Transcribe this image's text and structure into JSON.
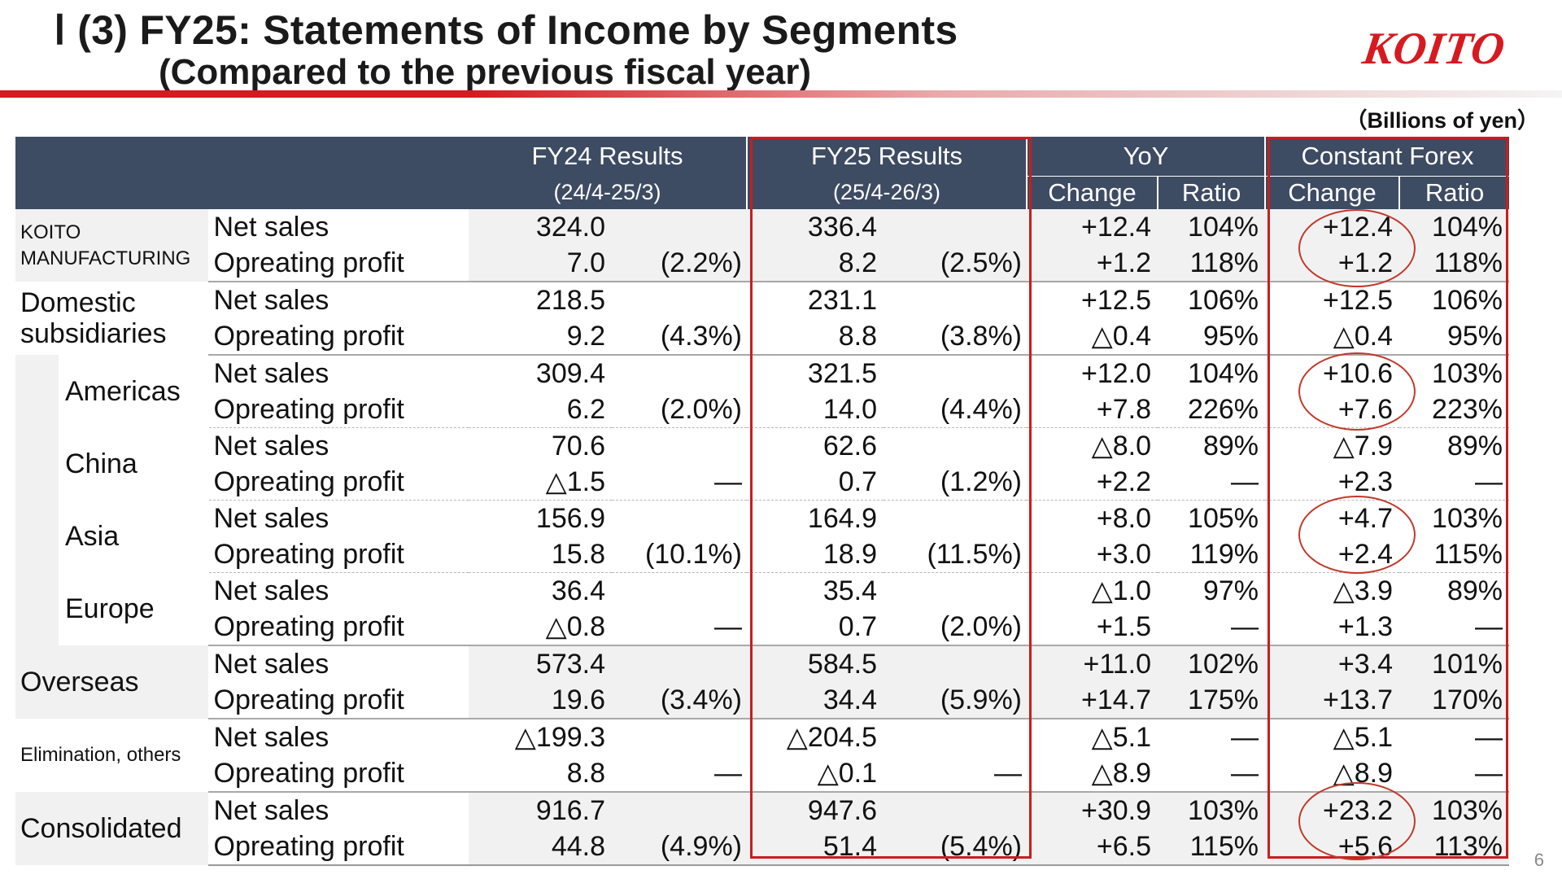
{
  "header": {
    "title_line1": "Ⅰ (3) FY25: Statements of Income by Segments",
    "title_line2": "(Compared to the previous fiscal year)",
    "logo_text": "KOITO",
    "unit": "（Billions of yen）",
    "page_number": "6"
  },
  "colors": {
    "accent_red": "#d71920",
    "header_navy": "#3d4b63",
    "row_gray": "#f1f1f1"
  },
  "columns": {
    "fy24": "FY24 Results",
    "fy24_period": "(24/4-25/3)",
    "fy25": "FY25 Results",
    "fy25_period": "(25/4-26/3)",
    "yoy": "YoY",
    "constant_forex": "Constant Forex",
    "change": "Change",
    "ratio": "Ratio"
  },
  "rows": [
    {
      "segment": "KOITO MANUFACTURING",
      "net_sales": {
        "item": "Net sales",
        "fy24": "324.0",
        "fy24_pct": "",
        "fy25": "336.4",
        "fy25_pct": "",
        "yoy_change": "+12.4",
        "yoy_ratio": "104%",
        "cf_change": "+12.4",
        "cf_ratio": "104%"
      },
      "op_profit": {
        "item": "Opreating profit",
        "fy24": "7.0",
        "fy24_pct": "(2.2%)",
        "fy25": "8.2",
        "fy25_pct": "(2.5%)",
        "yoy_change": "+1.2",
        "yoy_ratio": "118%",
        "cf_change": "+1.2",
        "cf_ratio": "118%"
      }
    },
    {
      "segment": "Domestic subsidiaries",
      "net_sales": {
        "item": "Net sales",
        "fy24": "218.5",
        "fy24_pct": "",
        "fy25": "231.1",
        "fy25_pct": "",
        "yoy_change": "+12.5",
        "yoy_ratio": "106%",
        "cf_change": "+12.5",
        "cf_ratio": "106%"
      },
      "op_profit": {
        "item": "Opreating profit",
        "fy24": "9.2",
        "fy24_pct": "(4.3%)",
        "fy25": "8.8",
        "fy25_pct": "(3.8%)",
        "yoy_change": "△0.4",
        "yoy_ratio": "95%",
        "cf_change": "△0.4",
        "cf_ratio": "95%"
      }
    },
    {
      "segment": "Americas",
      "net_sales": {
        "item": "Net sales",
        "fy24": "309.4",
        "fy24_pct": "",
        "fy25": "321.5",
        "fy25_pct": "",
        "yoy_change": "+12.0",
        "yoy_ratio": "104%",
        "cf_change": "+10.6",
        "cf_ratio": "103%"
      },
      "op_profit": {
        "item": "Opreating profit",
        "fy24": "6.2",
        "fy24_pct": "(2.0%)",
        "fy25": "14.0",
        "fy25_pct": "(4.4%)",
        "yoy_change": "+7.8",
        "yoy_ratio": "226%",
        "cf_change": "+7.6",
        "cf_ratio": "223%"
      }
    },
    {
      "segment": "China",
      "net_sales": {
        "item": "Net sales",
        "fy24": "70.6",
        "fy24_pct": "",
        "fy25": "62.6",
        "fy25_pct": "",
        "yoy_change": "△8.0",
        "yoy_ratio": "89%",
        "cf_change": "△7.9",
        "cf_ratio": "89%"
      },
      "op_profit": {
        "item": "Opreating profit",
        "fy24": "△1.5",
        "fy24_pct": "―",
        "fy25": "0.7",
        "fy25_pct": "(1.2%)",
        "yoy_change": "+2.2",
        "yoy_ratio": "―",
        "cf_change": "+2.3",
        "cf_ratio": "―"
      }
    },
    {
      "segment": "Asia",
      "net_sales": {
        "item": "Net sales",
        "fy24": "156.9",
        "fy24_pct": "",
        "fy25": "164.9",
        "fy25_pct": "",
        "yoy_change": "+8.0",
        "yoy_ratio": "105%",
        "cf_change": "+4.7",
        "cf_ratio": "103%"
      },
      "op_profit": {
        "item": "Opreating profit",
        "fy24": "15.8",
        "fy24_pct": "(10.1%)",
        "fy25": "18.9",
        "fy25_pct": "(11.5%)",
        "yoy_change": "+3.0",
        "yoy_ratio": "119%",
        "cf_change": "+2.4",
        "cf_ratio": "115%"
      }
    },
    {
      "segment": "Europe",
      "net_sales": {
        "item": "Net sales",
        "fy24": "36.4",
        "fy24_pct": "",
        "fy25": "35.4",
        "fy25_pct": "",
        "yoy_change": "△1.0",
        "yoy_ratio": "97%",
        "cf_change": "△3.9",
        "cf_ratio": "89%"
      },
      "op_profit": {
        "item": "Opreating profit",
        "fy24": "△0.8",
        "fy24_pct": "―",
        "fy25": "0.7",
        "fy25_pct": "(2.0%)",
        "yoy_change": "+1.5",
        "yoy_ratio": "―",
        "cf_change": "+1.3",
        "cf_ratio": "―"
      }
    },
    {
      "segment": "Overseas",
      "net_sales": {
        "item": "Net sales",
        "fy24": "573.4",
        "fy24_pct": "",
        "fy25": "584.5",
        "fy25_pct": "",
        "yoy_change": "+11.0",
        "yoy_ratio": "102%",
        "cf_change": "+3.4",
        "cf_ratio": "101%"
      },
      "op_profit": {
        "item": "Opreating profit",
        "fy24": "19.6",
        "fy24_pct": "(3.4%)",
        "fy25": "34.4",
        "fy25_pct": "(5.9%)",
        "yoy_change": "+14.7",
        "yoy_ratio": "175%",
        "cf_change": "+13.7",
        "cf_ratio": "170%"
      }
    },
    {
      "segment": "Elimination, others",
      "net_sales": {
        "item": "Net sales",
        "fy24": "△199.3",
        "fy24_pct": "",
        "fy25": "△204.5",
        "fy25_pct": "",
        "yoy_change": "△5.1",
        "yoy_ratio": "―",
        "cf_change": "△5.1",
        "cf_ratio": "―"
      },
      "op_profit": {
        "item": "Opreating profit",
        "fy24": "8.8",
        "fy24_pct": "―",
        "fy25": "△0.1",
        "fy25_pct": "―",
        "yoy_change": "△8.9",
        "yoy_ratio": "―",
        "cf_change": "△8.9",
        "cf_ratio": "―"
      }
    },
    {
      "segment": "Consolidated",
      "net_sales": {
        "item": "Net sales",
        "fy24": "916.7",
        "fy24_pct": "",
        "fy25": "947.6",
        "fy25_pct": "",
        "yoy_change": "+30.9",
        "yoy_ratio": "103%",
        "cf_change": "+23.2",
        "cf_ratio": "103%"
      },
      "op_profit": {
        "item": "Opreating profit",
        "fy24": "44.8",
        "fy24_pct": "(4.9%)",
        "fy25": "51.4",
        "fy25_pct": "(5.4%)",
        "yoy_change": "+6.5",
        "yoy_ratio": "115%",
        "cf_change": "+5.6",
        "cf_ratio": "113%"
      }
    }
  ]
}
